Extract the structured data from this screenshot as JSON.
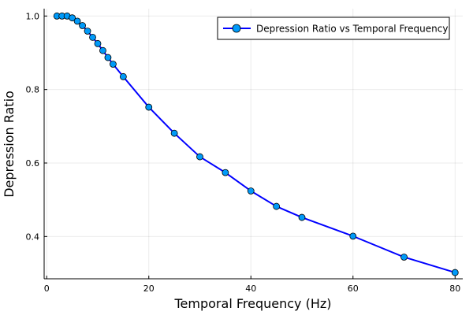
{
  "chart_data": {
    "type": "line",
    "title": "",
    "xlabel": "Temporal Frequency (Hz)",
    "ylabel": "Depression Ratio",
    "xlim": [
      -0.5,
      81.5
    ],
    "ylim": [
      0.285,
      1.02
    ],
    "xticks": [
      0,
      20,
      40,
      60,
      80
    ],
    "yticks": [
      0.4,
      0.6,
      0.8,
      1.0
    ],
    "xtick_labels": [
      "0",
      "20",
      "40",
      "60",
      "80"
    ],
    "ytick_labels": [
      "0.4",
      "0.6",
      "0.8",
      "1.0"
    ],
    "grid": true,
    "legend_position": "top-right",
    "series": [
      {
        "name": "Depression Ratio vs Temporal Frequency",
        "line_color": "#0000ff",
        "marker_color": "#009af9",
        "marker": "circle",
        "x": [
          2,
          3,
          4,
          5,
          6,
          7,
          8,
          9,
          10,
          11,
          12,
          13,
          15,
          20,
          25,
          30,
          35,
          40,
          45,
          50,
          60,
          70,
          80
        ],
        "y": [
          1.0,
          1.0,
          1.0,
          0.995,
          0.986,
          0.974,
          0.959,
          0.942,
          0.925,
          0.906,
          0.887,
          0.869,
          0.835,
          0.752,
          0.681,
          0.617,
          0.574,
          0.524,
          0.482,
          0.452,
          0.401,
          0.344,
          0.302
        ]
      }
    ]
  }
}
